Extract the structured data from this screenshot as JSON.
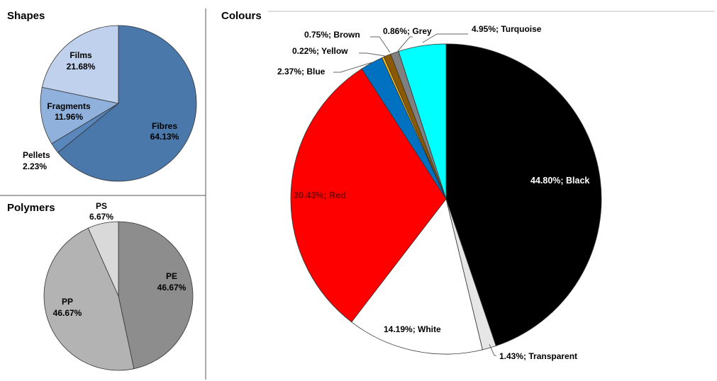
{
  "chart_data": [
    {
      "type": "pie",
      "title": "Shapes",
      "series": [
        {
          "name": "Fibres",
          "value": 64.13,
          "label": "64.13%",
          "color": "#4a78ab"
        },
        {
          "name": "Pellets",
          "value": 2.23,
          "label": "2.23%",
          "color": "#5a87bb"
        },
        {
          "name": "Fragments",
          "value": 11.96,
          "label": "11.96%",
          "color": "#8fb1dc"
        },
        {
          "name": "Films",
          "value": 21.68,
          "label": "21.68%",
          "color": "#bfd1ec"
        }
      ]
    },
    {
      "type": "pie",
      "title": "Polymers",
      "series": [
        {
          "name": "PE",
          "value": 46.67,
          "label": "46.67%",
          "color": "#8d8d8d"
        },
        {
          "name": "PP",
          "value": 46.67,
          "label": "46.67%",
          "color": "#b3b3b3"
        },
        {
          "name": "PS",
          "value": 6.67,
          "label": "6.67%",
          "color": "#d9d9d9"
        }
      ]
    },
    {
      "type": "pie",
      "title": "Colours",
      "series": [
        {
          "name": "Black",
          "value": 44.8,
          "label": "44.80%; Black",
          "color": "#000000"
        },
        {
          "name": "Transparent",
          "value": 1.43,
          "label": "1.43%; Transparent",
          "color": "#e6e6e6"
        },
        {
          "name": "White",
          "value": 14.19,
          "label": "14.19%; White",
          "color": "#ffffff"
        },
        {
          "name": "Red",
          "value": 30.43,
          "label": "30.43%; Red",
          "color": "#ff0000"
        },
        {
          "name": "Blue",
          "value": 2.37,
          "label": "2.37%; Blue",
          "color": "#0070c0"
        },
        {
          "name": "Yellow",
          "value": 0.22,
          "label": "0.22%; Yellow",
          "color": "#ffc000"
        },
        {
          "name": "Brown",
          "value": 0.75,
          "label": "0.75%; Brown",
          "color": "#8b5a00"
        },
        {
          "name": "Grey",
          "value": 0.86,
          "label": "0.86%; Grey",
          "color": "#808080"
        },
        {
          "name": "Turquoise",
          "value": 4.95,
          "label": "4.95%; Turquoise",
          "color": "#00ffff"
        }
      ]
    }
  ]
}
